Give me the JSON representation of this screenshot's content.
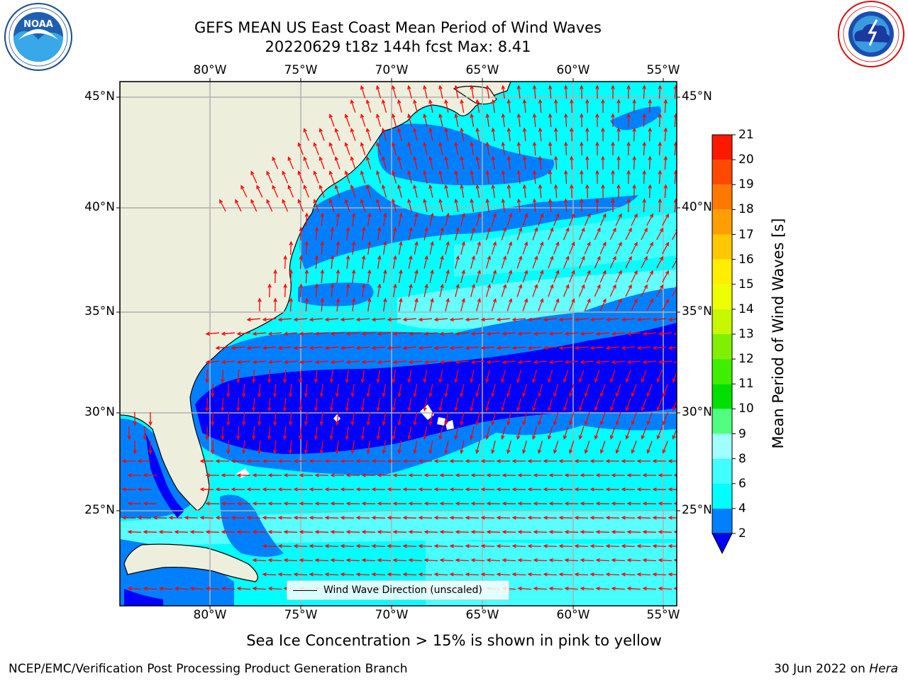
{
  "header": {
    "title_line1": "GEFS MEAN US East Coast Mean Period of Wind Waves",
    "title_line2": "20220629 t18z 144h fcst   Max: 8.41"
  },
  "logos": {
    "left": {
      "name": "NOAA",
      "ring_text": "NATIONAL OCEANIC AND ATMOSPHERIC ADMINISTRATION · U.S. DEPARTMENT OF COMMERCE"
    },
    "right": {
      "name": "NATIONAL WEATHER SERVICE"
    }
  },
  "map": {
    "lon_ticks": [
      "80°W",
      "75°W",
      "70°W",
      "65°W",
      "60°W",
      "55°W"
    ],
    "lat_ticks": [
      "45°N",
      "40°N",
      "35°N",
      "30°N",
      "25°N"
    ],
    "lon_range": [
      -85,
      -54.5
    ],
    "lat_range": [
      20.5,
      46
    ],
    "colors": {
      "land": "#eeeedc",
      "ocean_low": "#0080ff",
      "ocean_mid": "#00ffff",
      "ocean_light": "#7fffff",
      "ocean_deep": "#0000ff",
      "arrow": "#ff0000",
      "grid": "#b0b0b0"
    }
  },
  "legend": {
    "label": "Wind Wave Direction (unscaled)"
  },
  "colorbar": {
    "title": "Mean Period of Wind Waves [s]",
    "ticks": [
      "2",
      "4",
      "6",
      "8",
      "9",
      "10",
      "11",
      "12",
      "13",
      "14",
      "15",
      "16",
      "17",
      "18",
      "19",
      "20",
      "21"
    ],
    "colors": [
      "#0000ff",
      "#0080ff",
      "#00ffff",
      "#40ffff",
      "#a0ffff",
      "#50ff80",
      "#00e000",
      "#40ee00",
      "#80f000",
      "#c8f800",
      "#eeff00",
      "#ffee00",
      "#ffc800",
      "#ff9e00",
      "#ff7800",
      "#ff4800",
      "#ff1800",
      "#ff0000"
    ]
  },
  "notes": {
    "ice": "Sea Ice Concentration > 15% is shown in pink to yellow"
  },
  "footer": {
    "left": "NCEP/EMC/Verification Post Processing Product Generation Branch",
    "right_date": "30 Jun 2022 on ",
    "right_machine": "Hera"
  }
}
